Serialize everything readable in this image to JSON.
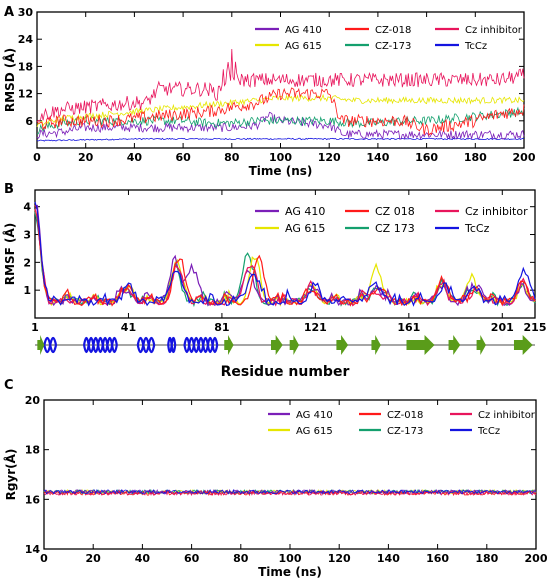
{
  "colors": {
    "AG 410": "#7b1fb8",
    "AG 615": "#e6e600",
    "CZ-018": "#ff1a1a",
    "CZ-173": "#14a06e",
    "Cz inhibitor": "#e8155c",
    "TcCz": "#1414e0",
    "strand": "#5a9c1a",
    "helix": "#1414e0"
  },
  "chart_data": [
    {
      "panel": "A",
      "type": "line",
      "xlabel": "Time (ns)",
      "ylabel": "RMSD (Å)",
      "xlim": [
        0,
        200
      ],
      "ylim": [
        0,
        30
      ],
      "xticks": [
        0,
        20,
        40,
        60,
        80,
        100,
        120,
        140,
        160,
        180,
        200
      ],
      "yticks": [
        6,
        12,
        18,
        24,
        30
      ],
      "legend_position": "top-right",
      "series": [
        {
          "name": "AG 410",
          "key": "AG 410",
          "x": [
            0,
            10,
            20,
            30,
            40,
            50,
            60,
            70,
            80,
            90,
            95,
            100,
            110,
            120,
            126,
            130,
            140,
            150,
            160,
            170,
            180,
            190,
            200
          ],
          "values": [
            3,
            3.5,
            4.5,
            4.5,
            4.5,
            4.5,
            4.5,
            4.5,
            4.5,
            5,
            7,
            6,
            5.5,
            5,
            3,
            3,
            3,
            3,
            3,
            3,
            3,
            3,
            3
          ]
        },
        {
          "name": "AG 615",
          "key": "AG 615",
          "x": [
            0,
            10,
            20,
            30,
            40,
            50,
            60,
            70,
            80,
            90,
            100,
            110,
            120,
            130,
            140,
            150,
            160,
            170,
            180,
            190,
            200
          ],
          "values": [
            5,
            6.5,
            7,
            7.5,
            8,
            8.5,
            9,
            9.5,
            10,
            10.5,
            11,
            11,
            11,
            10.5,
            10.5,
            10.5,
            10.5,
            10.5,
            10.5,
            10.5,
            10.5
          ]
        },
        {
          "name": "CZ-018",
          "key": "CZ-018",
          "x": [
            0,
            10,
            20,
            30,
            40,
            50,
            60,
            70,
            80,
            90,
            100,
            110,
            120,
            125,
            130,
            140,
            150,
            160,
            170,
            180,
            190,
            200
          ],
          "values": [
            5,
            6,
            6,
            6,
            6.5,
            7,
            7.5,
            8,
            9,
            10,
            12,
            12,
            12,
            6,
            6,
            6,
            6,
            4,
            5,
            6,
            7.5,
            8.5
          ]
        },
        {
          "name": "CZ-173",
          "key": "CZ-173",
          "x": [
            0,
            10,
            20,
            30,
            40,
            50,
            60,
            70,
            80,
            90,
            100,
            110,
            120,
            130,
            140,
            150,
            160,
            170,
            180,
            190,
            200
          ],
          "values": [
            4,
            5.5,
            6,
            6,
            6,
            6,
            6,
            5.5,
            5.5,
            6,
            6,
            6,
            6,
            5.5,
            5.5,
            6,
            6,
            6.5,
            7,
            7.5,
            8
          ]
        },
        {
          "name": "Cz inhibitor",
          "key": "Cz inhibitor",
          "x": [
            0,
            10,
            20,
            30,
            40,
            45,
            50,
            60,
            70,
            74,
            78,
            85,
            90,
            100,
            110,
            120,
            130,
            140,
            150,
            160,
            170,
            180,
            190,
            200
          ],
          "values": [
            7,
            8.5,
            9,
            9.5,
            10,
            10,
            13,
            13,
            13,
            12,
            16,
            15,
            15,
            15,
            15,
            15,
            15,
            15,
            15,
            15,
            15,
            15,
            15,
            16
          ]
        },
        {
          "name": "TcCz",
          "key": "TcCz",
          "x": [
            0,
            20,
            40,
            60,
            80,
            100,
            120,
            140,
            160,
            180,
            200
          ],
          "values": [
            1.6,
            1.8,
            2,
            2,
            2,
            2,
            2,
            2,
            2,
            2,
            2
          ]
        }
      ]
    },
    {
      "panel": "B",
      "type": "line",
      "xlabel": "Residue number",
      "ylabel": "RMSF (Å)",
      "xlim": [
        1,
        215
      ],
      "ylim": [
        0,
        4.6
      ],
      "xticks": [
        1,
        41,
        81,
        121,
        161,
        201,
        215
      ],
      "yticks": [
        1,
        2,
        3,
        4
      ],
      "legend_position": "top-right",
      "series": [
        {
          "name": "AG 410",
          "key": "AG 410",
          "peaks": [
            [
              1,
              4.0
            ],
            [
              40,
              0.9
            ],
            [
              61,
              1.8
            ],
            [
              68,
              1.7
            ],
            [
              92,
              1.6
            ],
            [
              120,
              1.0
            ],
            [
              147,
              1.0
            ],
            [
              175,
              1.0
            ],
            [
              190,
              1.1
            ],
            [
              210,
              0.9
            ]
          ]
        },
        {
          "name": "AG 615",
          "key": "AG 615",
          "peaks": [
            [
              1,
              3.8
            ],
            [
              41,
              1.0
            ],
            [
              62,
              1.8
            ],
            [
              95,
              2.1
            ],
            [
              120,
              1.0
            ],
            [
              147,
              1.8
            ],
            [
              175,
              1.0
            ],
            [
              188,
              1.3
            ],
            [
              210,
              0.9
            ]
          ]
        },
        {
          "name": "CZ 018",
          "key": "CZ-018",
          "peaks": [
            [
              1,
              3.9
            ],
            [
              41,
              1.0
            ],
            [
              63,
              2.1
            ],
            [
              97,
              2.0
            ],
            [
              120,
              0.9
            ],
            [
              148,
              1.0
            ],
            [
              176,
              1.1
            ],
            [
              190,
              1.0
            ],
            [
              210,
              1.0
            ]
          ]
        },
        {
          "name": "CZ 173",
          "key": "CZ-173",
          "peaks": [
            [
              1,
              3.6
            ],
            [
              40,
              0.9
            ],
            [
              61,
              1.6
            ],
            [
              92,
              2.2
            ],
            [
              120,
              0.9
            ],
            [
              147,
              1.0
            ],
            [
              176,
              1.0
            ],
            [
              190,
              0.9
            ],
            [
              210,
              1.0
            ]
          ]
        },
        {
          "name": "Cz inhibitor",
          "key": "Cz inhibitor",
          "peaks": [
            [
              1,
              3.8
            ],
            [
              41,
              0.9
            ],
            [
              62,
              1.7
            ],
            [
              93,
              1.8
            ],
            [
              120,
              0.9
            ],
            [
              147,
              0.9
            ],
            [
              175,
              1.0
            ],
            [
              190,
              0.9
            ],
            [
              210,
              1.0
            ]
          ]
        },
        {
          "name": "TcCz",
          "key": "TcCz",
          "peaks": [
            [
              1,
              4.2
            ],
            [
              41,
              1.0
            ],
            [
              61,
              1.6
            ],
            [
              94,
              1.5
            ],
            [
              121,
              1.0
            ],
            [
              147,
              1.1
            ],
            [
              176,
              1.0
            ],
            [
              189,
              1.0
            ],
            [
              210,
              1.6
            ]
          ]
        }
      ],
      "secondary_structure": {
        "helices": [
          [
            5,
            10
          ],
          [
            22,
            36
          ],
          [
            45,
            52
          ],
          [
            58,
            61
          ],
          [
            65,
            79
          ]
        ],
        "strands": [
          [
            2,
            5
          ],
          [
            82,
            86
          ],
          [
            102,
            107
          ],
          [
            110,
            114
          ],
          [
            130,
            135
          ],
          [
            145,
            149
          ],
          [
            160,
            172
          ],
          [
            178,
            183
          ],
          [
            190,
            194
          ],
          [
            206,
            214
          ]
        ]
      }
    },
    {
      "panel": "C",
      "type": "line",
      "xlabel": "Time (ns)",
      "ylabel": "Rgyr(Å)",
      "xlim": [
        0,
        200
      ],
      "ylim": [
        14,
        20
      ],
      "xticks": [
        0,
        20,
        40,
        60,
        80,
        100,
        120,
        140,
        160,
        180,
        200
      ],
      "yticks": [
        14,
        16,
        18,
        20
      ],
      "legend_position": "top-right",
      "series": [
        {
          "name": "AG 410",
          "key": "AG 410",
          "x": [
            0,
            200
          ],
          "values": [
            16.3,
            16.3
          ]
        },
        {
          "name": "AG 615",
          "key": "AG 615",
          "x": [
            0,
            200
          ],
          "values": [
            16.3,
            16.3
          ]
        },
        {
          "name": "CZ-018",
          "key": "CZ-018",
          "x": [
            0,
            200
          ],
          "values": [
            16.25,
            16.25
          ]
        },
        {
          "name": "CZ-173",
          "key": "CZ-173",
          "x": [
            0,
            200
          ],
          "values": [
            16.3,
            16.3
          ]
        },
        {
          "name": "Cz inhibitor",
          "key": "Cz inhibitor",
          "x": [
            0,
            200
          ],
          "values": [
            16.25,
            16.25
          ]
        },
        {
          "name": "TcCz",
          "key": "TcCz",
          "x": [
            0,
            200
          ],
          "values": [
            16.3,
            16.3
          ]
        }
      ]
    }
  ]
}
